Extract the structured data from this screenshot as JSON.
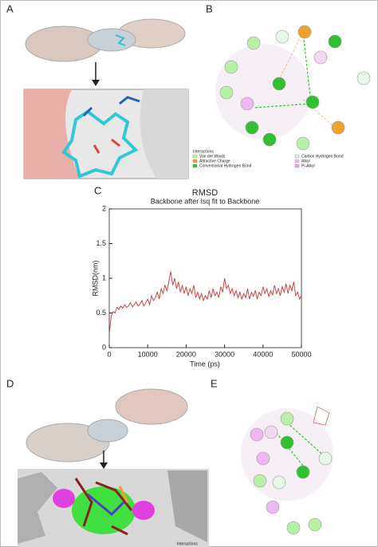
{
  "panels": {
    "a": "A",
    "b": "B",
    "c": "C",
    "d": "D",
    "e": "E"
  },
  "interactions": {
    "title": "Interactions",
    "items": [
      {
        "name": "Van der Waals",
        "color": "#b8f0a8"
      },
      {
        "name": "Attractive Charge",
        "color": "#f0a030"
      },
      {
        "name": "Conventional Hydrogen Bond",
        "color": "#30c030"
      },
      {
        "name": "Carbon Hydrogen Bond",
        "color": "#d8f0d8"
      },
      {
        "name": "Alkyl",
        "color": "#f0b8f0"
      },
      {
        "name": "Pi-Alkyl",
        "color": "#e8a0e8"
      }
    ]
  },
  "panel_d_legend": "Interactions",
  "chart_data": {
    "type": "line",
    "title": "RMSD",
    "subtitle": "Backbone after lsq fit to Backbone",
    "x_label": "Time (ps)",
    "y_label": "RMSD(nm)",
    "color": "#cc3333",
    "xlim": [
      0,
      50000
    ],
    "xticks": [
      0,
      10000,
      20000,
      30000,
      40000,
      50000
    ],
    "ylim": [
      0,
      2
    ],
    "yticks": [
      0,
      0.5,
      1,
      1.5,
      2
    ],
    "x": [
      0,
      500,
      1000,
      1500,
      2000,
      2500,
      3000,
      3500,
      4000,
      4500,
      5000,
      5500,
      6000,
      6500,
      7000,
      7500,
      8000,
      8500,
      9000,
      9500,
      10000,
      10500,
      11000,
      11500,
      12000,
      12500,
      13000,
      13500,
      14000,
      14500,
      15000,
      15500,
      16000,
      16500,
      17000,
      17500,
      18000,
      18500,
      19000,
      19500,
      20000,
      20500,
      21000,
      21500,
      22000,
      22500,
      23000,
      23500,
      24000,
      24500,
      25000,
      25500,
      26000,
      26500,
      27000,
      27500,
      28000,
      28500,
      29000,
      29500,
      30000,
      30500,
      31000,
      31500,
      32000,
      32500,
      33000,
      33500,
      34000,
      34500,
      35000,
      35500,
      36000,
      36500,
      37000,
      37500,
      38000,
      38500,
      39000,
      39500,
      40000,
      40500,
      41000,
      41500,
      42000,
      42500,
      43000,
      43500,
      44000,
      44500,
      45000,
      45500,
      46000,
      46500,
      47000,
      47500,
      48000,
      48500,
      49000,
      49500,
      50000
    ],
    "values": [
      0.2,
      0.45,
      0.52,
      0.5,
      0.58,
      0.55,
      0.6,
      0.57,
      0.62,
      0.58,
      0.6,
      0.65,
      0.59,
      0.62,
      0.66,
      0.6,
      0.63,
      0.68,
      0.6,
      0.65,
      0.7,
      0.62,
      0.75,
      0.68,
      0.72,
      0.8,
      0.7,
      0.85,
      0.78,
      0.9,
      0.82,
      0.95,
      1.1,
      0.9,
      1.0,
      0.85,
      0.95,
      0.8,
      0.9,
      0.78,
      0.88,
      0.75,
      0.85,
      0.78,
      0.9,
      0.72,
      0.8,
      0.7,
      0.78,
      0.68,
      0.75,
      0.7,
      0.82,
      0.72,
      0.85,
      0.75,
      0.8,
      0.72,
      0.88,
      0.8,
      1.0,
      0.85,
      0.9,
      0.78,
      0.85,
      0.75,
      0.82,
      0.72,
      0.8,
      0.7,
      0.78,
      0.72,
      0.85,
      0.7,
      0.8,
      0.74,
      0.82,
      0.7,
      0.8,
      0.75,
      0.88,
      0.78,
      0.85,
      0.74,
      0.82,
      0.76,
      0.9,
      0.78,
      0.85,
      0.75,
      0.88,
      0.8,
      0.92,
      0.78,
      0.9,
      0.82,
      0.95,
      0.75,
      0.8,
      0.7,
      0.75
    ]
  }
}
